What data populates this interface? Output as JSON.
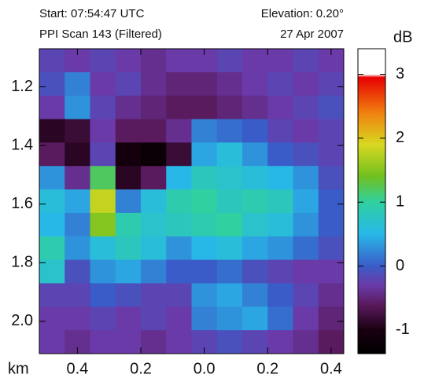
{
  "chart_data": {
    "type": "heatmap",
    "header": {
      "start": "Start: 07:54:47 UTC",
      "scan": "PPI Scan 143 (Filtered)",
      "elevation": "Elevation: 0.20°",
      "date": "27 Apr 2007"
    },
    "x_unit": "km",
    "colorbar_label": "dB",
    "x": [
      -0.48,
      -0.4,
      -0.32,
      -0.24,
      -0.16,
      -0.08,
      0.0,
      0.08,
      0.16,
      0.24,
      0.32,
      0.4
    ],
    "y": [
      1.11,
      1.19,
      1.27,
      1.35,
      1.43,
      1.51,
      1.59,
      1.67,
      1.75,
      1.83,
      1.91,
      1.99,
      2.07
    ],
    "z": [
      [
        -0.2,
        -0.3,
        -0.2,
        -0.3,
        -0.4,
        -0.3,
        -0.3,
        -0.2,
        -0.3,
        -0.3,
        -0.2,
        -0.3
      ],
      [
        -0.1,
        0.2,
        -0.3,
        -0.2,
        -0.4,
        -0.5,
        -0.5,
        -0.4,
        -0.3,
        -0.2,
        -0.3,
        -0.2
      ],
      [
        -0.3,
        0.3,
        -0.2,
        -0.4,
        -0.5,
        -0.6,
        -0.6,
        -0.5,
        -0.4,
        -0.3,
        -0.2,
        -0.1
      ],
      [
        -0.9,
        -0.8,
        -0.3,
        -0.6,
        -0.6,
        -0.4,
        0.2,
        0.1,
        0.0,
        -0.2,
        -0.3,
        -0.2
      ],
      [
        -0.6,
        -0.9,
        -0.2,
        -1.1,
        -1.2,
        -0.8,
        0.4,
        0.6,
        0.3,
        0.0,
        -0.1,
        -0.2
      ],
      [
        0.3,
        -0.4,
        1.2,
        -0.9,
        -0.6,
        0.5,
        0.8,
        0.7,
        0.6,
        0.5,
        0.3,
        -0.1
      ],
      [
        0.6,
        0.4,
        1.8,
        0.2,
        0.6,
        0.9,
        1.0,
        0.8,
        0.9,
        0.8,
        0.4,
        0.0
      ],
      [
        0.5,
        0.2,
        1.5,
        0.9,
        0.7,
        0.8,
        0.9,
        1.0,
        0.7,
        0.6,
        0.3,
        0.0
      ],
      [
        0.9,
        0.3,
        0.6,
        0.8,
        0.6,
        0.3,
        0.5,
        0.6,
        0.4,
        0.3,
        0.1,
        -0.1
      ],
      [
        0.7,
        -0.1,
        0.3,
        0.4,
        0.2,
        0.0,
        0.0,
        0.1,
        -0.1,
        -0.2,
        -0.3,
        -0.3
      ],
      [
        -0.2,
        -0.2,
        0.0,
        -0.1,
        -0.2,
        -0.2,
        0.3,
        0.4,
        0.2,
        0.0,
        -0.2,
        -0.4
      ],
      [
        -0.3,
        -0.3,
        -0.2,
        -0.3,
        -0.2,
        -0.3,
        0.2,
        0.3,
        0.4,
        0.1,
        -0.3,
        -0.5
      ],
      [
        -0.3,
        -0.4,
        -0.3,
        -0.3,
        -0.4,
        -0.3,
        -0.2,
        -0.1,
        -0.2,
        -0.3,
        -0.4,
        -0.6
      ]
    ],
    "xlim": [
      -0.52,
      0.44
    ],
    "ylim": [
      1.07,
      2.11
    ],
    "y_inverted": true,
    "xticks": [
      {
        "value": -0.4,
        "label": "0.4"
      },
      {
        "value": -0.2,
        "label": "0.2"
      },
      {
        "value": 0.0,
        "label": "0.0"
      },
      {
        "value": 0.2,
        "label": "0.2"
      },
      {
        "value": 0.4,
        "label": "0.4"
      }
    ],
    "yticks": [
      {
        "value": 1.2,
        "label": "1.2"
      },
      {
        "value": 1.4,
        "label": "1.4"
      },
      {
        "value": 1.6,
        "label": "1.6"
      },
      {
        "value": 1.8,
        "label": "1.8"
      },
      {
        "value": 2.0,
        "label": "2.0"
      }
    ],
    "clim": [
      -1.37,
      3.4
    ],
    "cticks": [
      -1,
      0,
      1,
      2,
      3
    ],
    "colorscale": [
      [
        -1.37,
        "#000000"
      ],
      [
        -1.0,
        "#1a0010"
      ],
      [
        -0.6,
        "#5a1a5e"
      ],
      [
        -0.3,
        "#6a3aa8"
      ],
      [
        0.0,
        "#3a5cc8"
      ],
      [
        0.5,
        "#28b8e8"
      ],
      [
        1.0,
        "#30d0a0"
      ],
      [
        1.4,
        "#70c020"
      ],
      [
        1.9,
        "#d8d820"
      ],
      [
        2.4,
        "#f08010"
      ],
      [
        2.95,
        "#e80000"
      ],
      [
        3.0,
        "#ffffff"
      ],
      [
        3.4,
        "#ffffff"
      ]
    ]
  }
}
